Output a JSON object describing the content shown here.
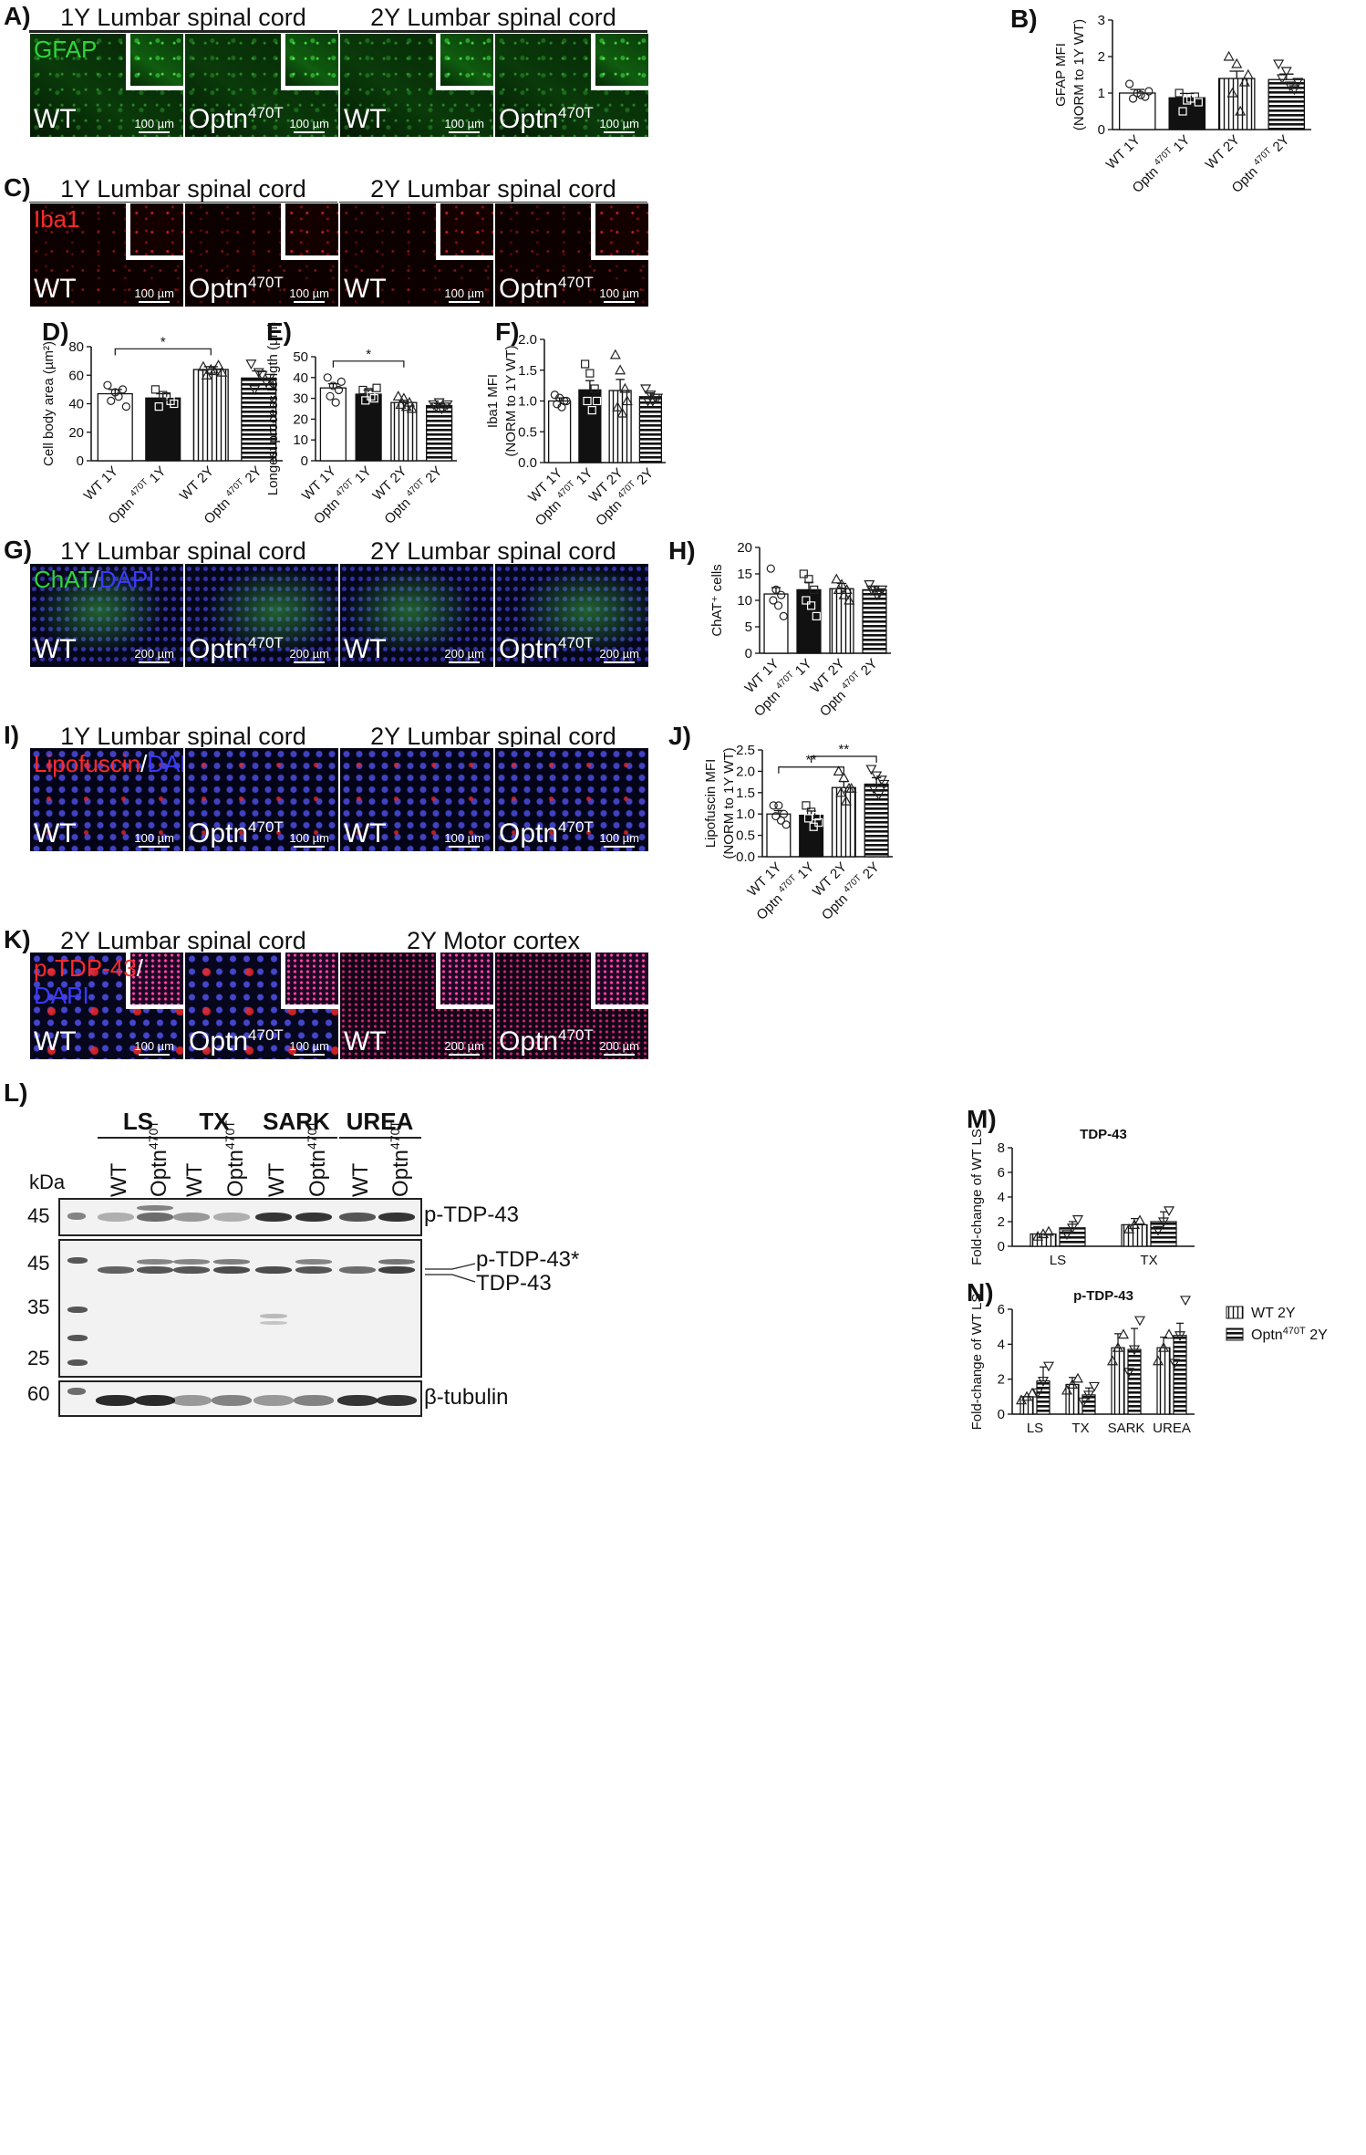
{
  "panels": {
    "A": {
      "label": "A)",
      "titles": [
        "1Y Lumbar spinal cord",
        "2Y Lumbar spinal cord"
      ],
      "stain": "GFAP",
      "scale": "100 µm"
    },
    "C": {
      "label": "C)",
      "titles": [
        "1Y Lumbar spinal cord",
        "2Y Lumbar spinal cord"
      ],
      "stain": "Iba1",
      "scale": "100 µm"
    },
    "G": {
      "label": "G)",
      "titles": [
        "1Y Lumbar spinal cord",
        "2Y Lumbar spinal cord"
      ],
      "stain_a": "ChAT",
      "stain_sep": "/",
      "stain_b": "DAPI",
      "scale": "200 µm"
    },
    "I": {
      "label": "I)",
      "titles": [
        "1Y Lumbar spinal cord",
        "2Y Lumbar spinal cord"
      ],
      "stain_a": "Lipofuscin",
      "stain_sep": "/",
      "stain_b": "DAPI",
      "scale": "100 µm"
    },
    "K": {
      "label": "K)",
      "titles": [
        "2Y Lumbar spinal cord",
        "2Y Motor cortex"
      ],
      "stain_a": "p-TDP-43",
      "stain_sep": "/",
      "stain_b": "DAPI",
      "scale_a": "100 µm",
      "scale_b": "200 µm"
    },
    "L": {
      "label": "L)"
    }
  },
  "genotypes": {
    "wt": "WT",
    "optn": "Optn",
    "optn_sup": "470T"
  },
  "western": {
    "groups": [
      "LS",
      "TX",
      "SARK",
      "UREA"
    ],
    "lanes": [
      "WT",
      "Optn470T",
      "WT",
      "Optn470T",
      "WT",
      "Optn470T",
      "WT",
      "Optn470T"
    ],
    "kda_label": "kDa",
    "markers_top": [
      "45"
    ],
    "markers_mid": [
      "45",
      "35",
      "25"
    ],
    "markers_bottom": [
      "60"
    ],
    "band_labels": [
      "p-TDP-43",
      "p-TDP-43*",
      "TDP-43",
      "β-tubulin"
    ]
  },
  "legend": {
    "wt": "WT 2Y",
    "optn": "Optn",
    "optn_sup": "470T",
    "optn_suffix": " 2Y"
  },
  "colors": {
    "gfap": "#22c02a",
    "iba1": "#e01818",
    "dapi": "#2a2ad8",
    "lipofuscin": "#e02020"
  },
  "chart_data": [
    {
      "id": "B",
      "type": "bar",
      "label": "B)",
      "ylabel": [
        "GFAP MFI",
        "(NORM to 1Y WT)"
      ],
      "ylim": [
        0,
        3
      ],
      "yticks": [
        0,
        1,
        2,
        3
      ],
      "categories": [
        "WT 1Y",
        "Optn470T 1Y",
        "WT 2Y",
        "Optn470T 2Y"
      ],
      "values": [
        1.0,
        0.87,
        1.4,
        1.37
      ],
      "errors": [
        0.1,
        0.12,
        0.2,
        0.15
      ],
      "points": [
        [
          1.25,
          1.0,
          0.9,
          0.85,
          0.95,
          1.05
        ],
        [
          1.0,
          0.8,
          0.9,
          0.5,
          0.85,
          0.75
        ],
        [
          2.0,
          1.8,
          1.3,
          1.0,
          0.5,
          1.5
        ],
        [
          1.8,
          1.6,
          1.1,
          1.4,
          1.2,
          1.3
        ]
      ]
    },
    {
      "id": "D",
      "type": "bar",
      "label": "D)",
      "ylabel": [
        "Cell body area (µm²)"
      ],
      "ylim": [
        0,
        80
      ],
      "yticks": [
        0,
        20,
        40,
        60,
        80
      ],
      "categories": [
        "WT 1Y",
        "Optn470T 1Y",
        "WT 2Y",
        "Optn470T 2Y"
      ],
      "values": [
        47,
        44,
        64,
        58
      ],
      "errors": [
        3,
        3,
        2,
        5
      ],
      "points": [
        [
          53,
          48,
          50,
          42,
          45,
          38
        ],
        [
          50,
          46,
          42,
          38,
          45,
          40
        ],
        [
          66,
          64,
          67,
          60,
          63,
          62
        ],
        [
          68,
          62,
          55,
          50,
          60,
          58
        ]
      ],
      "sig": [
        {
          "from": 0,
          "to": 2,
          "text": "*"
        }
      ]
    },
    {
      "id": "E",
      "type": "bar",
      "label": "E)",
      "ylabel": [
        "Longest process length (µm)"
      ],
      "ylim": [
        0,
        50
      ],
      "yticks": [
        0,
        10,
        20,
        30,
        40,
        50
      ],
      "categories": [
        "WT 1Y",
        "Optn470T 1Y",
        "WT 2Y",
        "Optn470T 2Y"
      ],
      "values": [
        35,
        32,
        28,
        26.5
      ],
      "errors": [
        2,
        2,
        1,
        1
      ],
      "points": [
        [
          40,
          36,
          34,
          31,
          28,
          38
        ],
        [
          34,
          33,
          30,
          29,
          31,
          35
        ],
        [
          31,
          30,
          28,
          27,
          26,
          25
        ],
        [
          27,
          28,
          26,
          26,
          25,
          27
        ]
      ],
      "sig": [
        {
          "from": 0,
          "to": 2,
          "text": "*"
        }
      ]
    },
    {
      "id": "F",
      "type": "bar",
      "label": "F)",
      "ylabel": [
        "Iba1 MFI",
        "(NORM to 1Y WT)"
      ],
      "ylim": [
        0,
        2
      ],
      "yticks": [
        0.0,
        0.5,
        1.0,
        1.5,
        2.0
      ],
      "categories": [
        "WT 1Y",
        "Optn470T 1Y",
        "WT 2Y",
        "Optn470T 2Y"
      ],
      "values": [
        1.0,
        1.18,
        1.17,
        1.07
      ],
      "errors": [
        0.05,
        0.15,
        0.18,
        0.06
      ],
      "points": [
        [
          1.1,
          1.05,
          1.0,
          0.95,
          0.9,
          1.0
        ],
        [
          1.6,
          1.45,
          1.2,
          1.0,
          0.85,
          1.0
        ],
        [
          1.75,
          1.5,
          1.2,
          0.9,
          0.8,
          1.0
        ],
        [
          1.2,
          1.1,
          1.05,
          1.0,
          1.0,
          1.05
        ]
      ]
    },
    {
      "id": "H",
      "type": "bar",
      "label": "H)",
      "ylabel": [
        "ChAT⁺ cells"
      ],
      "ylim": [
        0,
        20
      ],
      "yticks": [
        0,
        5,
        10,
        15,
        20
      ],
      "categories": [
        "WT 1Y",
        "Optn470T 1Y",
        "WT 2Y",
        "Optn470T 2Y"
      ],
      "values": [
        11.2,
        12.0,
        12.2,
        12.0
      ],
      "errors": [
        1.2,
        1.4,
        1.0,
        0.6
      ],
      "points": [
        [
          16,
          12,
          11,
          10,
          9,
          7
        ],
        [
          15,
          14,
          12,
          10,
          9,
          7
        ],
        [
          14,
          13,
          12,
          12,
          11,
          10
        ],
        [
          13,
          12,
          11.5,
          12,
          11,
          12
        ]
      ]
    },
    {
      "id": "J",
      "type": "bar",
      "label": "J)",
      "ylabel": [
        "Lipofuscin MFI",
        "(NORM to 1Y WT)"
      ],
      "ylim": [
        0,
        2.5
      ],
      "yticks": [
        0.0,
        0.5,
        1.0,
        1.5,
        2.0,
        2.5
      ],
      "categories": [
        "WT 1Y",
        "Optn470T 1Y",
        "WT 2Y",
        "Optn470T 2Y"
      ],
      "values": [
        1.0,
        0.97,
        1.62,
        1.7
      ],
      "errors": [
        0.08,
        0.1,
        0.14,
        0.15
      ],
      "points": [
        [
          1.2,
          1.2,
          1.0,
          0.95,
          0.85,
          0.75
        ],
        [
          1.2,
          1.05,
          0.95,
          0.9,
          0.7,
          0.8
        ],
        [
          2.0,
          1.85,
          1.6,
          1.5,
          1.3,
          1.6
        ],
        [
          2.05,
          1.9,
          1.8,
          1.6,
          1.45,
          1.7
        ]
      ],
      "sig": [
        {
          "from": 0,
          "to": 2,
          "text": "**",
          "level": 2.1
        },
        {
          "from": 1,
          "to": 3,
          "text": "**",
          "level": 2.35
        }
      ]
    },
    {
      "id": "M",
      "type": "grouped-bar",
      "label": "M)",
      "title": "TDP-43",
      "ylabel": [
        "Fold-change of WT LS"
      ],
      "ylim": [
        0,
        8
      ],
      "yticks": [
        0,
        2,
        4,
        6,
        8
      ],
      "categories": [
        "LS",
        "TX"
      ],
      "series": [
        {
          "name": "WT 2Y",
          "values": [
            1.0,
            1.75
          ],
          "errors": [
            0.0,
            0.5
          ]
        },
        {
          "name": "Optn470T 2Y",
          "values": [
            1.5,
            2.0
          ],
          "errors": [
            0.5,
            0.8
          ]
        }
      ]
    },
    {
      "id": "N",
      "type": "grouped-bar",
      "label": "N)",
      "title": "p-TDP-43",
      "ylabel": [
        "Fold-change of WT LS"
      ],
      "ylim": [
        0,
        6
      ],
      "yticks": [
        0,
        2,
        4,
        6
      ],
      "categories": [
        "LS",
        "TX",
        "SARK",
        "UREA"
      ],
      "series": [
        {
          "name": "WT 2Y",
          "values": [
            1.0,
            1.7,
            3.8,
            3.8
          ],
          "errors": [
            0.0,
            0.4,
            0.8,
            0.6
          ]
        },
        {
          "name": "Optn470T 2Y",
          "values": [
            1.9,
            1.1,
            3.7,
            4.5
          ],
          "errors": [
            0.8,
            0.4,
            1.2,
            0.7
          ]
        }
      ]
    }
  ]
}
